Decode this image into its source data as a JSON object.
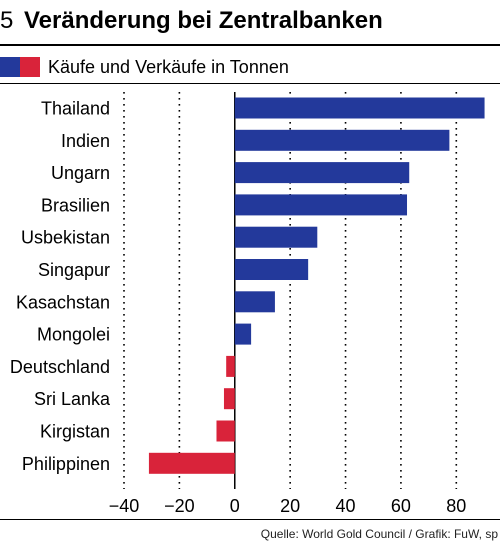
{
  "header": {
    "number": "5",
    "title": "Veränderung bei Zentralbanken"
  },
  "legend": {
    "label": "Käufe und Verkäufe in Tonnen",
    "colors": {
      "positive": "#23399b",
      "negative": "#d9233a"
    }
  },
  "source": "Quelle: World Gold Council / Grafik: FuW, sp",
  "chart_data": {
    "type": "bar",
    "orientation": "horizontal",
    "categories": [
      "Thailand",
      "Indien",
      "Ungarn",
      "Brasilien",
      "Usbekistan",
      "Singapur",
      "Kasachstan",
      "Mongolei",
      "Deutschland",
      "Sri Lanka",
      "Kirgistan",
      "Philippinen"
    ],
    "values": [
      90.2,
      77.5,
      63.0,
      62.2,
      29.8,
      26.5,
      14.5,
      5.9,
      -3.1,
      -3.9,
      -6.6,
      -31.0
    ],
    "xlim": [
      -40,
      90
    ],
    "xticks": [
      -40,
      -20,
      0,
      20,
      40,
      60,
      80
    ],
    "xticklabels": [
      "−40",
      "−20",
      "0",
      "20",
      "40",
      "60",
      "80"
    ],
    "grid": "vertical dotted",
    "legend_position": "top-left"
  }
}
